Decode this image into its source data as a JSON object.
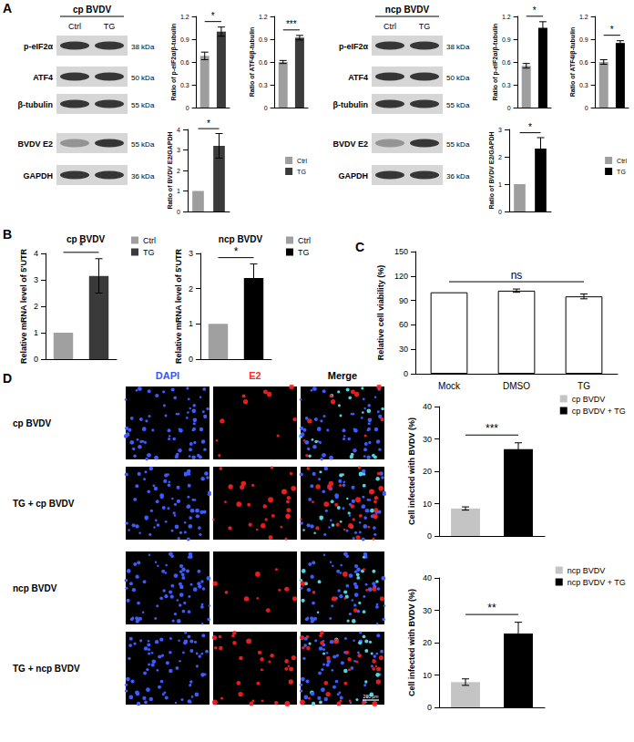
{
  "panels": [
    "A",
    "B",
    "C",
    "D"
  ],
  "blots": [
    {
      "title": "cp BVDV",
      "lanes": [
        "Ctrl",
        "TG"
      ],
      "rows": [
        {
          "label": "p-eIF2α",
          "size": "38 kDa"
        },
        {
          "label": "ATF4",
          "size": "50 kDa"
        },
        {
          "label": "β-tubulin",
          "size": "55 kDa"
        },
        {
          "label": "BVDV E2",
          "size": "55 kDa"
        },
        {
          "label": "GAPDH",
          "size": "36 kDa"
        }
      ]
    },
    {
      "title": "ncp BVDV",
      "lanes": [
        "Ctrl",
        "TG"
      ],
      "rows": [
        {
          "label": "p-eIF2α",
          "size": "38 kDa"
        },
        {
          "label": "ATF4",
          "size": "50 kDa"
        },
        {
          "label": "β-tubulin",
          "size": "55 kDa"
        },
        {
          "label": "BVDV E2",
          "size": "55 kDa"
        },
        {
          "label": "GAPDH",
          "size": "36 kDa"
        }
      ]
    }
  ],
  "images": {
    "columns": [
      "DAPI",
      "E2",
      "Merge"
    ],
    "rows": [
      "cp BVDV",
      "TG + cp BVDV",
      "ncp BVDV",
      "TG + ncp BVDV"
    ],
    "scale_bar": "200 μm"
  },
  "chart_data": [
    {
      "type": "bar",
      "ylabel": "Ratio of p-eIF2α/β-tubulin",
      "categories": [
        "Ctrl",
        "TG"
      ],
      "values": [
        0.68,
        1.0
      ],
      "errors": [
        0.05,
        0.06
      ],
      "colors": [
        "#9e9e9e",
        "#3b3b3b"
      ],
      "ylim": [
        0,
        1.2
      ],
      "yticks": [
        0,
        0.3,
        0.6,
        0.9,
        1.2
      ],
      "tick_labels": "y",
      "annotations": [
        {
          "text": "*",
          "from": "Ctrl",
          "to": "TG"
        }
      ]
    },
    {
      "type": "bar",
      "ylabel": "Ratio of ATF4/β-tubulin",
      "categories": [
        "Ctrl",
        "TG"
      ],
      "values": [
        0.6,
        0.92
      ],
      "errors": [
        0.02,
        0.03
      ],
      "colors": [
        "#9e9e9e",
        "#3b3b3b"
      ],
      "ylim": [
        0,
        1.2
      ],
      "yticks": [
        0,
        0.3,
        0.6,
        0.9,
        1.2
      ],
      "tick_labels": "y",
      "annotations": [
        {
          "text": "***",
          "from": "Ctrl",
          "to": "TG"
        }
      ]
    },
    {
      "type": "bar",
      "ylabel": "Ratio of BVDV E2/GAPDH",
      "categories": [
        "Ctrl",
        "TG"
      ],
      "values": [
        1,
        3.2
      ],
      "errors": [
        0,
        0.6
      ],
      "colors": [
        "#9e9e9e",
        "#3b3b3b"
      ],
      "ylim": [
        0,
        4
      ],
      "yticks": [
        0,
        1,
        2,
        3,
        4
      ],
      "tick_labels": "y",
      "legend": "right",
      "annotations": [
        {
          "text": "*",
          "from": "Ctrl",
          "to": "TG"
        }
      ]
    },
    {
      "type": "bar",
      "ylabel": "Ratio of p-eIF2α/β-tubulin",
      "categories": [
        "Ctrl",
        "TG"
      ],
      "values": [
        0.55,
        1.05
      ],
      "errors": [
        0.03,
        0.08
      ],
      "colors": [
        "#9e9e9e",
        "#000000"
      ],
      "ylim": [
        0,
        1.2
      ],
      "yticks": [
        0,
        0.3,
        0.6,
        0.9,
        1.2
      ],
      "tick_labels": "y",
      "annotations": [
        {
          "text": "*",
          "from": "Ctrl",
          "to": "TG"
        }
      ]
    },
    {
      "type": "bar",
      "ylabel": "Ratio of ATF4/β-tubulin",
      "categories": [
        "Ctrl",
        "TG"
      ],
      "values": [
        0.6,
        0.85
      ],
      "errors": [
        0.03,
        0.03
      ],
      "colors": [
        "#9e9e9e",
        "#000000"
      ],
      "ylim": [
        0,
        1.2
      ],
      "yticks": [
        0,
        0.3,
        0.6,
        0.9,
        1.2
      ],
      "tick_labels": "y",
      "annotations": [
        {
          "text": "*",
          "from": "Ctrl",
          "to": "TG"
        }
      ]
    },
    {
      "type": "bar",
      "ylabel": "Ratio of BVDV E2/GAPDH",
      "categories": [
        "Ctrl",
        "TG"
      ],
      "values": [
        1,
        2.3
      ],
      "errors": [
        0,
        0.4
      ],
      "colors": [
        "#9e9e9e",
        "#000000"
      ],
      "ylim": [
        0,
        3
      ],
      "yticks": [
        0,
        1,
        2,
        3
      ],
      "tick_labels": "y",
      "legend": "right",
      "annotations": [
        {
          "text": "*",
          "from": "Ctrl",
          "to": "TG"
        }
      ]
    },
    {
      "type": "bar",
      "title": "cp BVDV",
      "ylabel": "Relative mRNA level of 5'UTR",
      "categories": [
        "Ctrl",
        "TG"
      ],
      "values": [
        1,
        3.15
      ],
      "errors": [
        0,
        0.65
      ],
      "colors": [
        "#a0a0a0",
        "#3a3a3a"
      ],
      "ylim": [
        0,
        4
      ],
      "yticks": [
        0,
        1,
        2,
        3,
        4
      ],
      "tick_labels": "y",
      "legend": "upper right",
      "annotations": [
        {
          "text": "*",
          "from": "Ctrl",
          "to": "TG"
        }
      ]
    },
    {
      "type": "bar",
      "title": "ncp BVDV",
      "ylabel": "Relative mRNA level of 5'UTR",
      "categories": [
        "Ctrl",
        "TG"
      ],
      "values": [
        1,
        2.3
      ],
      "errors": [
        0,
        0.4
      ],
      "colors": [
        "#a0a0a0",
        "#000000"
      ],
      "ylim": [
        0,
        3
      ],
      "yticks": [
        0,
        1,
        2,
        3
      ],
      "tick_labels": "y",
      "legend": "upper right",
      "annotations": [
        {
          "text": "*",
          "from": "Ctrl",
          "to": "TG"
        }
      ]
    },
    {
      "type": "bar",
      "ylabel": "Relative cell viability (%)",
      "categories": [
        "Mock",
        "DMSO",
        "TG"
      ],
      "values": [
        100,
        102,
        95
      ],
      "errors": [
        0,
        2,
        3
      ],
      "colors": [
        "#ffffff",
        "#ffffff",
        "#ffffff"
      ],
      "ylim": [
        0,
        150
      ],
      "yticks": [
        0,
        30,
        60,
        90,
        120,
        150
      ],
      "annotations": [
        {
          "text": "ns",
          "from": "Mock",
          "to": "TG"
        }
      ]
    },
    {
      "type": "bar",
      "ylabel": "Cell infected with BVDV (%)",
      "categories": [
        "cp BVDV",
        "cp BVDV + TG"
      ],
      "values": [
        8.5,
        26.8
      ],
      "errors": [
        0.5,
        2.0
      ],
      "colors": [
        "#c4c4c4",
        "#000000"
      ],
      "ylim": [
        0,
        40
      ],
      "yticks": [
        0,
        10,
        20,
        30,
        40
      ],
      "tick_labels": "y",
      "legend": "upper right",
      "annotations": [
        {
          "text": "***",
          "from": "cp BVDV",
          "to": "cp BVDV + TG"
        }
      ]
    },
    {
      "type": "bar",
      "ylabel": "Cell infected with BVDV (%)",
      "categories": [
        "ncp BVDV",
        "ncp BVDV + TG"
      ],
      "values": [
        7.8,
        22.8
      ],
      "errors": [
        1.0,
        3.5
      ],
      "colors": [
        "#c4c4c4",
        "#000000"
      ],
      "ylim": [
        0,
        40
      ],
      "yticks": [
        0,
        10,
        20,
        30,
        40
      ],
      "tick_labels": "y",
      "legend": "upper right",
      "annotations": [
        {
          "text": "**",
          "from": "ncp BVDV",
          "to": "ncp BVDV + TG"
        }
      ]
    }
  ]
}
